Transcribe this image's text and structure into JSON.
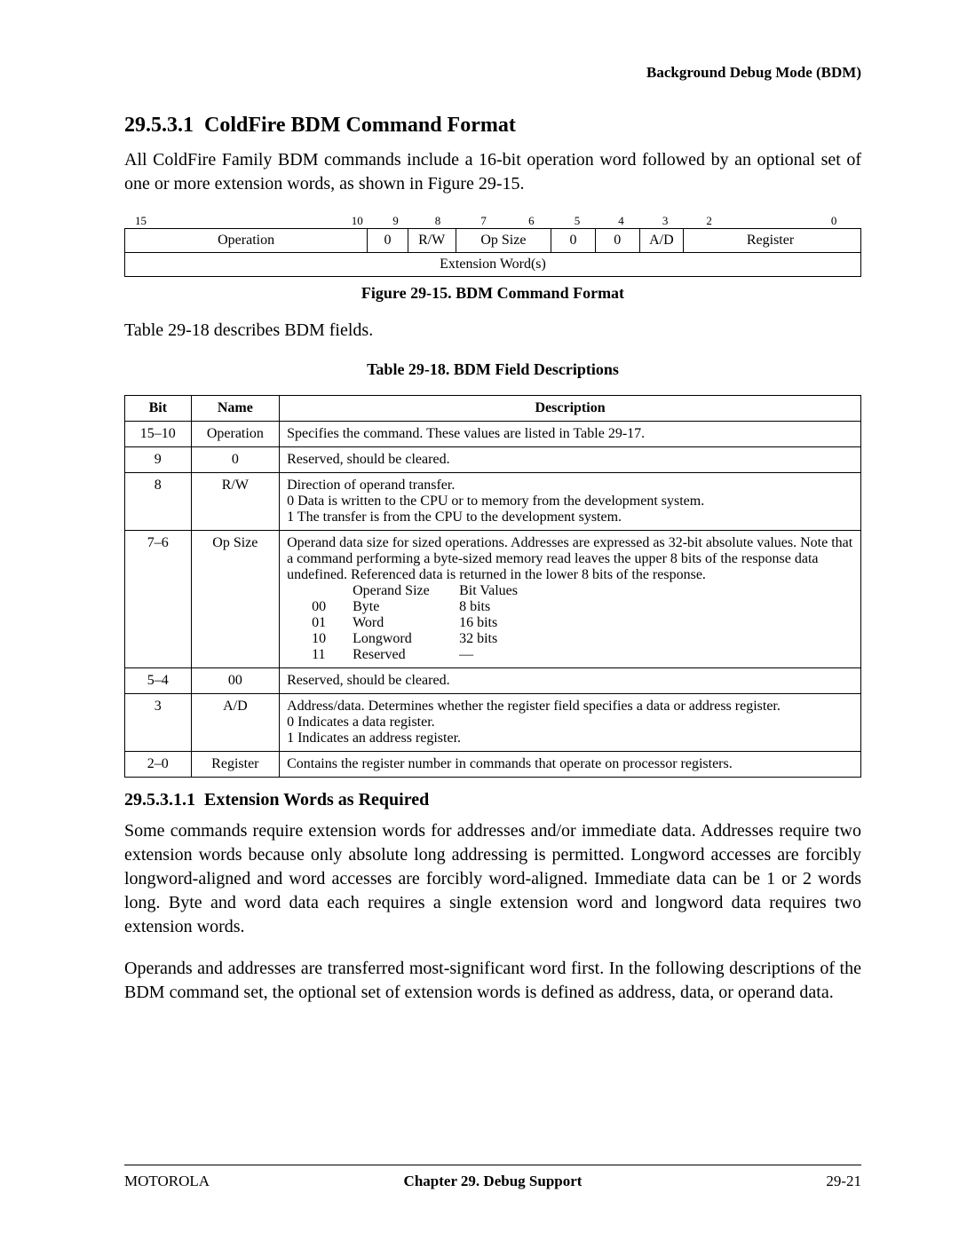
{
  "header": {
    "running": "Background Debug Mode (BDM)"
  },
  "section": {
    "num": "29.5.3.1",
    "title": "ColdFire BDM Command Format",
    "intro": "All ColdFire Family BDM commands include a 16-bit operation word followed by an optional set of one or more extension words, as shown in Figure 29-15."
  },
  "bitfig": {
    "nums": {
      "b15": "15",
      "b10": "10",
      "b9": "9",
      "b8": "8",
      "b7": "7",
      "b6": "6",
      "b5": "5",
      "b4": "4",
      "b3": "3",
      "b2": "2",
      "b0": "0"
    },
    "cells": {
      "operation": "Operation",
      "b9": "0",
      "rw": "R/W",
      "opsize": "Op Size",
      "b5": "0",
      "b4": "0",
      "ad": "A/D",
      "register": "Register"
    },
    "ext": "Extension Word(s)",
    "caption": "Figure 29-15. BDM Command Format"
  },
  "mid": "Table 29-18 describes BDM fields.",
  "table": {
    "caption": "Table 29-18. BDM Field Descriptions",
    "head": {
      "bit": "Bit",
      "name": "Name",
      "desc": "Description"
    },
    "rows": {
      "r0": {
        "bit": "15–10",
        "name": "Operation",
        "desc": "Specifies the command. These values are listed in Table 29-17."
      },
      "r1": {
        "bit": "9",
        "name": "0",
        "desc": "Reserved, should be cleared."
      },
      "r2": {
        "bit": "8",
        "name": "R/W",
        "l1": "Direction of operand transfer.",
        "l2": "0  Data is written to the CPU or to memory from the development system.",
        "l3": "1  The transfer is from the CPU to the development system."
      },
      "r3": {
        "bit": "7–6",
        "name": "Op Size",
        "p": "Operand data size for sized operations. Addresses are expressed as 32-bit absolute values. Note that a command performing a byte-sized memory read leaves the upper 8 bits of the response data undefined. Referenced data is returned in the lower 8 bits of the response.",
        "h1": "Operand Size",
        "h2": "Bit Values",
        "a1k": "00",
        "a1n": "Byte",
        "a1v": "8 bits",
        "a2k": "01",
        "a2n": "Word",
        "a2v": "16 bits",
        "a3k": "10",
        "a3n": "Longword",
        "a3v": "32 bits",
        "a4k": "11",
        "a4n": "Reserved",
        "a4v": "—"
      },
      "r4": {
        "bit": "5–4",
        "name": "00",
        "desc": "Reserved, should be cleared."
      },
      "r5": {
        "bit": "3",
        "name": "A/D",
        "l1": "Address/data. Determines whether the register field specifies a data or address register.",
        "l2": "0  Indicates a data register.",
        "l3": "1  Indicates an address register."
      },
      "r6": {
        "bit": "2–0",
        "name": "Register",
        "desc": "Contains the register number in commands that operate on processor registers."
      }
    }
  },
  "sub": {
    "num": "29.5.3.1.1",
    "title": "Extension Words as Required",
    "p1": "Some commands require extension words for addresses and/or immediate data. Addresses require two extension words because only absolute long addressing is permitted. Longword accesses are forcibly longword-aligned and word accesses are forcibly word-aligned. Immediate data can be 1 or 2 words long. Byte and word data each requires a single extension word and longword data requires two extension words.",
    "p2": "Operands and addresses are transferred most-significant word first. In the following descriptions of the BDM command set, the optional set of extension words is defined as address, data, or operand data."
  },
  "footer": {
    "left": "MOTOROLA",
    "center": "Chapter 29. Debug Support",
    "right": "29-21"
  }
}
